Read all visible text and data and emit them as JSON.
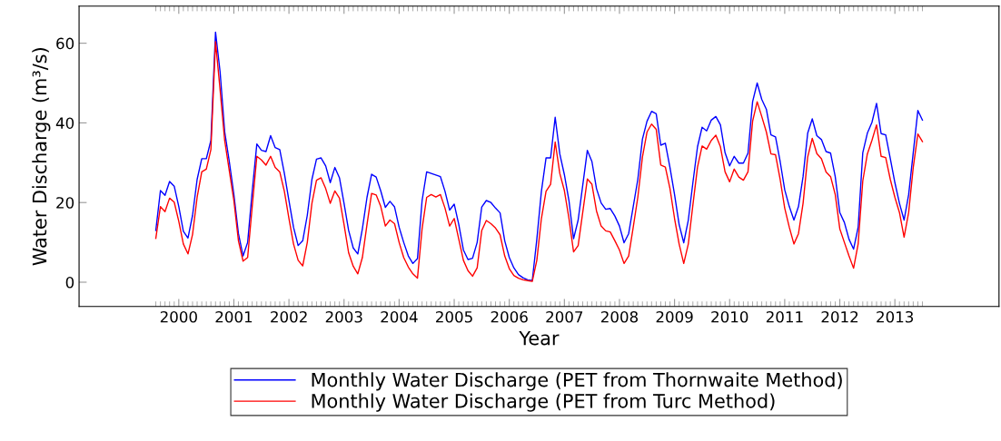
{
  "chart_data": {
    "type": "line",
    "xlabel": "Year",
    "ylabel": "Water Discharge (m³/s)",
    "x": [
      1999.583,
      1999.667,
      1999.75,
      1999.833,
      1999.917,
      2000.0,
      2000.083,
      2000.167,
      2000.25,
      2000.333,
      2000.417,
      2000.5,
      2000.583,
      2000.667,
      2000.75,
      2000.833,
      2000.917,
      2001.0,
      2001.083,
      2001.167,
      2001.25,
      2001.333,
      2001.417,
      2001.5,
      2001.583,
      2001.667,
      2001.75,
      2001.833,
      2001.917,
      2002.0,
      2002.083,
      2002.167,
      2002.25,
      2002.333,
      2002.417,
      2002.5,
      2002.583,
      2002.667,
      2002.75,
      2002.833,
      2002.917,
      2003.0,
      2003.083,
      2003.167,
      2003.25,
      2003.333,
      2003.417,
      2003.5,
      2003.583,
      2003.667,
      2003.75,
      2003.833,
      2003.917,
      2004.0,
      2004.083,
      2004.167,
      2004.25,
      2004.333,
      2004.417,
      2004.5,
      2004.583,
      2004.667,
      2004.75,
      2004.833,
      2004.917,
      2005.0,
      2005.083,
      2005.167,
      2005.25,
      2005.333,
      2005.417,
      2005.5,
      2005.583,
      2005.667,
      2005.75,
      2005.833,
      2005.917,
      2006.0,
      2006.083,
      2006.167,
      2006.25,
      2006.333,
      2006.417,
      2006.5,
      2006.583,
      2006.667,
      2006.75,
      2006.833,
      2006.917,
      2007.0,
      2007.083,
      2007.167,
      2007.25,
      2007.333,
      2007.417,
      2007.5,
      2007.583,
      2007.667,
      2007.75,
      2007.833,
      2007.917,
      2008.0,
      2008.083,
      2008.167,
      2008.25,
      2008.333,
      2008.417,
      2008.5,
      2008.583,
      2008.667,
      2008.75,
      2008.833,
      2008.917,
      2009.0,
      2009.083,
      2009.167,
      2009.25,
      2009.333,
      2009.417,
      2009.5,
      2009.583,
      2009.667,
      2009.75,
      2009.833,
      2009.917,
      2010.0,
      2010.083,
      2010.167,
      2010.25,
      2010.333,
      2010.417,
      2010.5,
      2010.583,
      2010.667,
      2010.75,
      2010.833,
      2010.917,
      2011.0,
      2011.083,
      2011.167,
      2011.25,
      2011.333,
      2011.417,
      2011.5,
      2011.583,
      2011.667,
      2011.75,
      2011.833,
      2011.917,
      2012.0,
      2012.083,
      2012.167,
      2012.25,
      2012.333,
      2012.417,
      2012.5,
      2012.583,
      2012.667,
      2012.75,
      2012.833,
      2012.917,
      2013.0,
      2013.083,
      2013.167,
      2013.25,
      2013.333,
      2013.417,
      2013.5
    ],
    "xlim": [
      1998.19,
      2014.89
    ],
    "ylim": [
      -6.1,
      69.3
    ],
    "yticks": [
      0,
      20,
      40,
      60
    ],
    "xticks": [
      2000,
      2001,
      2002,
      2003,
      2004,
      2005,
      2006,
      2007,
      2008,
      2009,
      2010,
      2011,
      2012,
      2013
    ],
    "grid": false,
    "legend": "bottom",
    "marker": "none",
    "line_style": "solid",
    "series": [
      {
        "name": "Monthly Water Discharge (PET from Thornwaite Method)",
        "color": "#0000ff",
        "values": [
          13.0,
          23.0,
          21.8,
          25.3,
          24.1,
          19.0,
          12.8,
          11.1,
          16.8,
          25.8,
          31.0,
          31.0,
          35.6,
          62.8,
          52.8,
          37.8,
          30.3,
          22.0,
          12.2,
          6.6,
          10.0,
          22.8,
          34.7,
          33.1,
          32.8,
          36.8,
          33.8,
          33.3,
          27.3,
          20.5,
          13.8,
          9.2,
          10.4,
          16.8,
          25.8,
          30.9,
          31.2,
          29.2,
          25.0,
          28.8,
          26.2,
          19.8,
          13.0,
          8.6,
          7.1,
          13.4,
          21.3,
          27.1,
          26.4,
          22.9,
          18.8,
          20.3,
          18.9,
          13.8,
          10.0,
          6.6,
          4.7,
          5.9,
          20.5,
          27.7,
          27.3,
          26.9,
          26.5,
          22.8,
          18.1,
          19.6,
          14.5,
          8.1,
          5.7,
          6.0,
          10.0,
          18.9,
          20.5,
          20.0,
          18.6,
          17.4,
          10.4,
          6.2,
          3.6,
          1.9,
          1.1,
          0.6,
          0.4,
          10.8,
          22.8,
          31.2,
          31.2,
          41.4,
          32.2,
          27.0,
          20.5,
          10.9,
          15.6,
          24.3,
          33.1,
          30.3,
          23.5,
          19.9,
          18.3,
          18.5,
          16.6,
          14.1,
          9.9,
          12.2,
          19.0,
          25.8,
          35.9,
          40.4,
          42.9,
          42.3,
          34.4,
          34.9,
          28.8,
          22.0,
          14.5,
          9.9,
          15.6,
          25.0,
          34.0,
          38.9,
          38.0,
          40.7,
          41.6,
          39.5,
          32.5,
          29.2,
          31.6,
          29.9,
          29.9,
          32.4,
          45.3,
          50.0,
          45.9,
          43.4,
          37.0,
          36.5,
          30.3,
          23.2,
          19.0,
          15.6,
          19.0,
          26.5,
          37.4,
          41.0,
          36.8,
          35.8,
          32.8,
          32.4,
          26.5,
          17.5,
          15.0,
          10.8,
          8.3,
          13.8,
          32.5,
          37.4,
          40.1,
          44.9,
          37.3,
          37.0,
          31.0,
          25.0,
          19.8,
          15.6,
          22.0,
          32.5,
          43.1,
          40.7
        ]
      },
      {
        "name": "Monthly Water Discharge (PET from Turc Method)",
        "color": "#ff0000",
        "values": [
          11.0,
          19.0,
          17.7,
          21.1,
          20.1,
          15.3,
          9.6,
          7.1,
          12.0,
          21.3,
          27.7,
          28.4,
          33.3,
          60.4,
          48.3,
          35.6,
          28.0,
          20.5,
          10.4,
          5.3,
          6.2,
          19.0,
          31.6,
          30.7,
          29.4,
          31.6,
          28.8,
          27.7,
          22.8,
          16.0,
          9.6,
          5.5,
          4.1,
          10.0,
          19.8,
          25.6,
          26.2,
          23.5,
          19.8,
          22.9,
          21.1,
          14.5,
          7.4,
          4.0,
          2.1,
          6.2,
          14.5,
          22.3,
          21.9,
          19.0,
          14.1,
          15.6,
          14.7,
          10.0,
          6.2,
          3.8,
          2.1,
          1.0,
          13.4,
          21.3,
          22.0,
          21.4,
          22.0,
          18.6,
          14.1,
          16.0,
          10.8,
          5.5,
          2.9,
          1.5,
          3.6,
          13.0,
          15.5,
          14.7,
          13.6,
          11.9,
          6.6,
          3.4,
          1.7,
          1.0,
          0.6,
          0.4,
          0.2,
          5.5,
          16.0,
          22.8,
          24.6,
          35.2,
          27.3,
          23.0,
          16.0,
          7.6,
          9.2,
          17.5,
          25.9,
          24.6,
          17.9,
          14.1,
          12.9,
          12.6,
          10.4,
          8.1,
          4.7,
          6.6,
          13.8,
          21.3,
          31.4,
          37.7,
          39.7,
          38.4,
          29.4,
          28.9,
          23.5,
          16.0,
          9.6,
          4.7,
          9.6,
          19.4,
          28.9,
          34.2,
          33.4,
          35.6,
          36.9,
          34.0,
          27.7,
          25.2,
          28.4,
          26.4,
          25.6,
          27.7,
          40.4,
          45.3,
          41.6,
          37.7,
          32.2,
          32.0,
          25.8,
          18.6,
          13.8,
          9.6,
          12.2,
          19.8,
          31.4,
          36.1,
          32.3,
          31.0,
          27.7,
          26.5,
          22.0,
          13.4,
          10.0,
          6.6,
          3.5,
          9.6,
          25.4,
          32.2,
          35.6,
          39.5,
          31.6,
          31.3,
          25.8,
          21.3,
          17.5,
          11.3,
          17.5,
          28.8,
          37.2,
          35.3
        ]
      }
    ]
  }
}
